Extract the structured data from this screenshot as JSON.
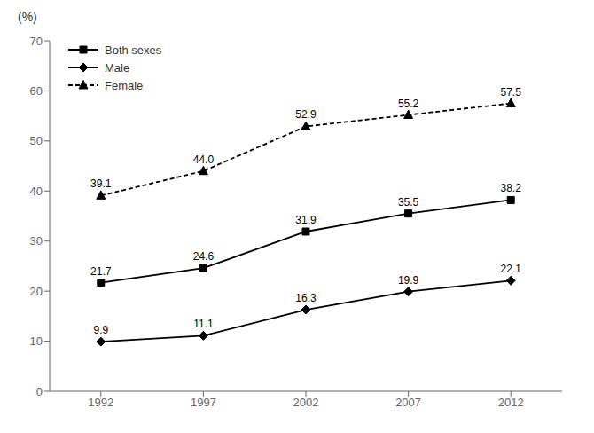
{
  "chart_data": {
    "type": "line",
    "y_label": "(%)",
    "x": [
      1992,
      1997,
      2002,
      2007,
      2012
    ],
    "xlim": [
      1989.5,
      2014.5
    ],
    "xticks": [
      1992,
      1997,
      2002,
      2007,
      2012
    ],
    "ylim": [
      0,
      70
    ],
    "yticks": [
      0,
      10,
      20,
      30,
      40,
      50,
      60,
      70
    ],
    "grid": false,
    "legend": "upper left",
    "data_labels": true,
    "series": [
      {
        "name": "Both sexes",
        "color": "#000000",
        "marker": "square",
        "line_style": "solid",
        "values": [
          21.7,
          24.6,
          31.9,
          35.5,
          38.2
        ]
      },
      {
        "name": "Male",
        "color": "#000000",
        "marker": "diamond",
        "line_style": "solid",
        "values": [
          9.9,
          11.1,
          16.3,
          19.9,
          22.1
        ]
      },
      {
        "name": "Female",
        "color": "#000000",
        "marker": "triangle",
        "line_style": "dashed",
        "values": [
          39.1,
          44.0,
          52.9,
          55.2,
          57.5
        ],
        "value_labels": [
          "39.1",
          "44.0",
          "52.9",
          "55.2",
          "57.5"
        ]
      }
    ]
  }
}
